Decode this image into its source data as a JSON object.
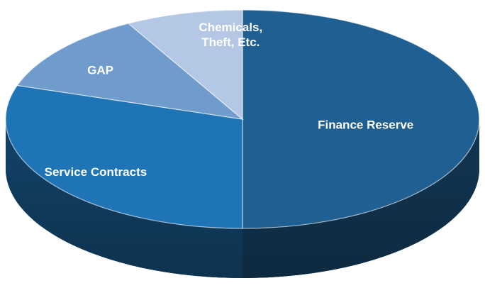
{
  "chart_data": {
    "type": "pie",
    "style": "3d",
    "title": "",
    "slices": [
      {
        "label": "Finance Reserve",
        "value": 50,
        "color": "#1f5f92"
      },
      {
        "label": "Service Contracts",
        "value": 30,
        "color": "#1f74b6"
      },
      {
        "label": "GAP",
        "value": 12,
        "color": "#6f9ccd"
      },
      {
        "label": "Chemicals, Theft, Etc.",
        "value": 8,
        "color": "#b4c7e4"
      }
    ]
  }
}
